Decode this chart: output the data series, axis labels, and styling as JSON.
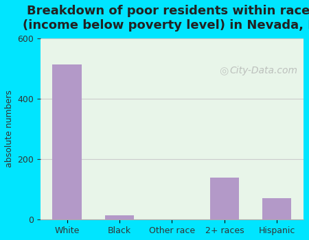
{
  "title": "Breakdown of poor residents within races\n(income below poverty level) in Nevada, IA",
  "categories": [
    "White",
    "Black",
    "Other race",
    "2+ races",
    "Hispanic"
  ],
  "values": [
    513,
    15,
    0,
    140,
    72
  ],
  "bar_color": "#b399c8",
  "ylabel": "absolute numbers",
  "ylim": [
    0,
    600
  ],
  "yticks": [
    0,
    200,
    400,
    600
  ],
  "background_outer": "#00e5ff",
  "background_plot_top": "#e8f5e9",
  "background_plot_bottom": "#e0f7f4",
  "grid_color": "#cccccc",
  "title_fontsize": 13,
  "axis_label_fontsize": 9,
  "tick_fontsize": 9
}
